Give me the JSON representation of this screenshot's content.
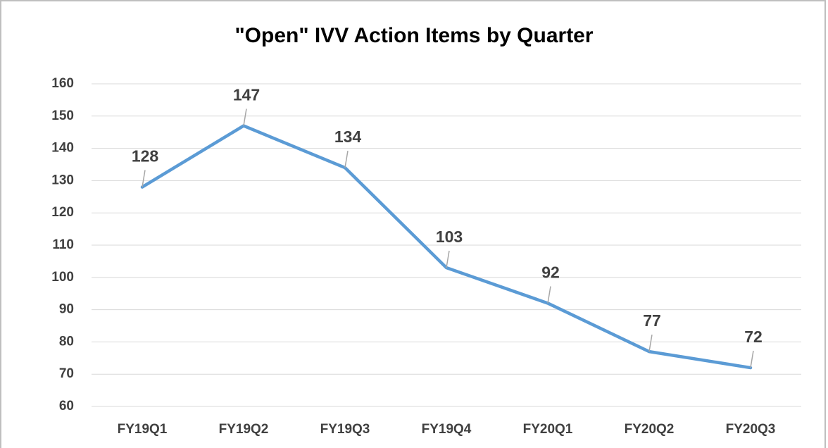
{
  "chart_data": {
    "type": "line",
    "title": "\"Open\" IVV Action Items by Quarter",
    "categories": [
      "FY19Q1",
      "FY19Q2",
      "FY19Q3",
      "FY19Q4",
      "FY20Q1",
      "FY20Q2",
      "FY20Q3"
    ],
    "series": [
      {
        "name": "Open",
        "color": "#5b9bd5",
        "values": [
          128,
          147,
          134,
          103,
          92,
          77,
          72
        ]
      }
    ],
    "ylim": [
      60,
      160
    ],
    "yticks": [
      60,
      70,
      80,
      90,
      100,
      110,
      120,
      130,
      140,
      150,
      160
    ],
    "grid": true
  }
}
